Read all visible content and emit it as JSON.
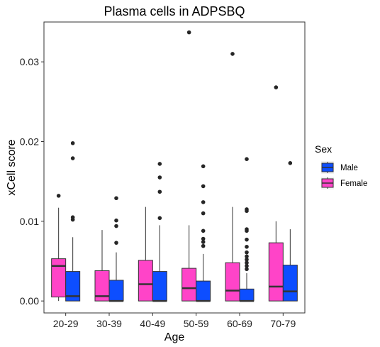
{
  "chart_data": {
    "type": "box",
    "title": "Plasma cells in ADPSBQ",
    "xlabel": "Age",
    "ylabel": "xCell score",
    "categories": [
      "20-29",
      "30-39",
      "40-49",
      "50-59",
      "60-69",
      "70-79"
    ],
    "yticks": [
      0.0,
      0.01,
      0.02,
      0.03
    ],
    "ytick_labels": [
      "0.00",
      "0.01",
      "0.02",
      "0.03"
    ],
    "ylim": [
      -0.0015,
      0.035
    ],
    "grid": false,
    "legend": {
      "title": "Sex",
      "position": "right",
      "entries": [
        {
          "label": "Male",
          "color": "#0d4eff"
        },
        {
          "label": "Female",
          "color": "#ff44c8"
        }
      ]
    },
    "series": [
      {
        "name": "Female",
        "color": "#ff44c8",
        "boxes": [
          {
            "min": 0.0,
            "q1": 0.0005,
            "median": 0.0044,
            "q3": 0.0053,
            "max": 0.0117,
            "outliers": [
              0.0132
            ]
          },
          {
            "min": 0.0,
            "q1": 0.0,
            "median": 0.0006,
            "q3": 0.0038,
            "max": 0.0089,
            "outliers": []
          },
          {
            "min": 0.0,
            "q1": 0.0,
            "median": 0.0021,
            "q3": 0.0051,
            "max": 0.0118,
            "outliers": []
          },
          {
            "min": 0.0,
            "q1": 0.0,
            "median": 0.0016,
            "q3": 0.0041,
            "max": 0.0095,
            "outliers": [
              0.0337
            ]
          },
          {
            "min": 0.0,
            "q1": 0.0,
            "median": 0.0013,
            "q3": 0.0048,
            "max": 0.0118,
            "outliers": [
              0.031
            ]
          },
          {
            "min": 0.0,
            "q1": 0.0,
            "median": 0.0018,
            "q3": 0.0073,
            "max": 0.01,
            "outliers": [
              0.0268
            ]
          }
        ]
      },
      {
        "name": "Male",
        "color": "#0d4eff",
        "boxes": [
          {
            "min": 0.0,
            "q1": 0.0,
            "median": 0.0006,
            "q3": 0.0037,
            "max": 0.008,
            "outliers": [
              0.0102,
              0.0105,
              0.0179,
              0.0198
            ]
          },
          {
            "min": 0.0,
            "q1": 0.0,
            "median": 0.0,
            "q3": 0.0026,
            "max": 0.0061,
            "outliers": [
              0.0073,
              0.0094,
              0.0101,
              0.0129
            ]
          },
          {
            "min": 0.0,
            "q1": 0.0,
            "median": 0.0,
            "q3": 0.0037,
            "max": 0.0095,
            "outliers": [
              0.0104,
              0.0137,
              0.0155,
              0.0172
            ]
          },
          {
            "min": 0.0,
            "q1": 0.0,
            "median": 0.0,
            "q3": 0.0025,
            "max": 0.0059,
            "outliers": [
              0.0069,
              0.0074,
              0.0078,
              0.0088,
              0.011,
              0.0124,
              0.0144,
              0.0169
            ]
          },
          {
            "min": 0.0,
            "q1": 0.0,
            "median": 0.0,
            "q3": 0.0015,
            "max": 0.0035,
            "outliers": [
              0.004,
              0.0044,
              0.0048,
              0.0052,
              0.0056,
              0.0061,
              0.0068,
              0.0077,
              0.0088,
              0.009,
              0.0113,
              0.0115,
              0.0178
            ]
          },
          {
            "min": 0.0,
            "q1": 0.0,
            "median": 0.0012,
            "q3": 0.0045,
            "max": 0.009,
            "outliers": [
              0.0173
            ]
          }
        ]
      }
    ]
  }
}
